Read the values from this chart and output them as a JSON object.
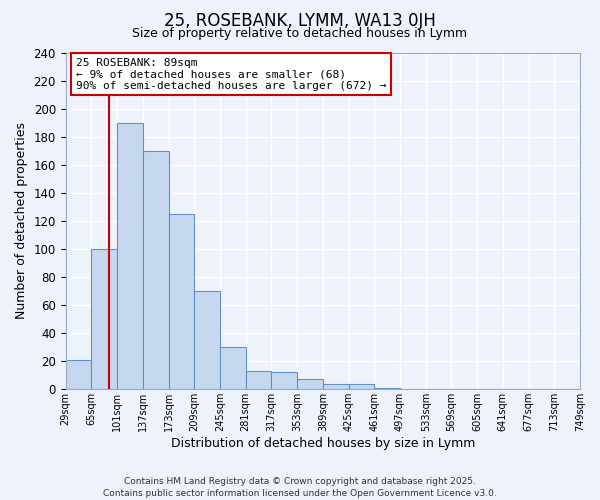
{
  "title": "25, ROSEBANK, LYMM, WA13 0JH",
  "subtitle": "Size of property relative to detached houses in Lymm",
  "xlabel": "Distribution of detached houses by size in Lymm",
  "ylabel": "Number of detached properties",
  "bin_labels": [
    "29sqm",
    "65sqm",
    "101sqm",
    "137sqm",
    "173sqm",
    "209sqm",
    "245sqm",
    "281sqm",
    "317sqm",
    "353sqm",
    "389sqm",
    "425sqm",
    "461sqm",
    "497sqm",
    "533sqm",
    "569sqm",
    "605sqm",
    "641sqm",
    "677sqm",
    "713sqm",
    "749sqm"
  ],
  "bar_values": [
    21,
    100,
    190,
    170,
    125,
    70,
    30,
    13,
    12,
    7,
    4,
    4,
    1,
    0,
    0,
    0,
    0,
    0,
    0,
    0
  ],
  "bar_color": "#c5d8f0",
  "bar_edge_color": "#6090c8",
  "vline_color": "#cc0000",
  "annotation_line1": "25 ROSEBANK: 89sqm",
  "annotation_line2": "← 9% of detached houses are smaller (68)",
  "annotation_line3": "90% of semi-detached houses are larger (672) →",
  "annotation_box_color": "#ffffff",
  "annotation_border_color": "#cc0000",
  "ylim": [
    0,
    240
  ],
  "yticks": [
    0,
    20,
    40,
    60,
    80,
    100,
    120,
    140,
    160,
    180,
    200,
    220,
    240
  ],
  "bg_color": "#eef2fb",
  "grid_color": "#ffffff",
  "footer_line1": "Contains HM Land Registry data © Crown copyright and database right 2025.",
  "footer_line2": "Contains public sector information licensed under the Open Government Licence v3.0."
}
